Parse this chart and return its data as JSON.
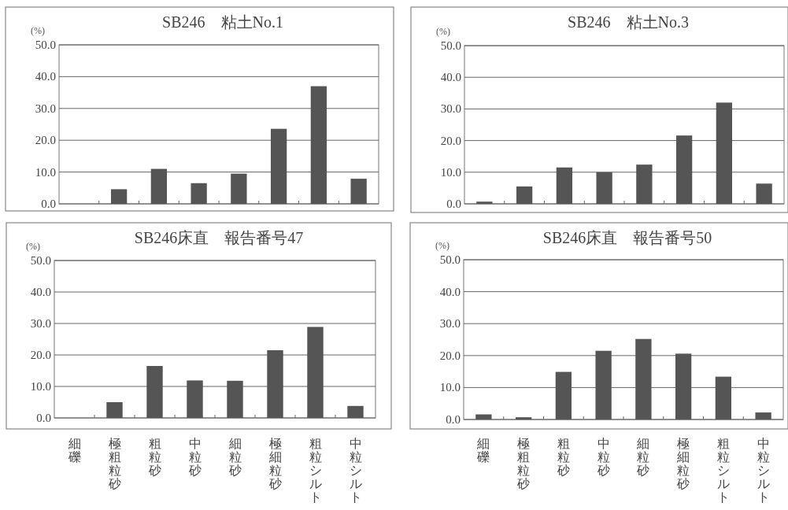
{
  "chart_data": [
    {
      "type": "bar",
      "title": "SB246　粘土No.1",
      "ylabel": "(%)",
      "categories": [
        null,
        null,
        null,
        null,
        null,
        null,
        null,
        null
      ],
      "values": [
        0,
        4.6,
        11.0,
        6.5,
        9.5,
        23.6,
        37.0,
        7.9
      ],
      "color": "#555555",
      "ylim": [
        0,
        50
      ],
      "yticks": [
        {
          "value": 0,
          "label": "0.0"
        },
        {
          "value": 10,
          "label": "10.0"
        },
        {
          "value": 20,
          "label": "20.0"
        },
        {
          "value": 30,
          "label": "30.0"
        },
        {
          "value": 40,
          "label": "40.0"
        },
        {
          "value": 50,
          "label": "50.0"
        }
      ],
      "grid": "y",
      "tick_labels": "y"
    },
    {
      "type": "bar",
      "title": "SB246　粘土No.3",
      "ylabel": "(%)",
      "categories": [
        null,
        null,
        null,
        null,
        null,
        null,
        null,
        null
      ],
      "values": [
        0.7,
        5.5,
        11.5,
        10.0,
        12.4,
        21.6,
        32.0,
        6.4
      ],
      "color": "#555555",
      "ylim": [
        0,
        50
      ],
      "yticks": [
        {
          "value": 0,
          "label": "0.0"
        },
        {
          "value": 10,
          "label": "10.0"
        },
        {
          "value": 20,
          "label": "20.0"
        },
        {
          "value": 30,
          "label": "30.0"
        },
        {
          "value": 40,
          "label": "40.0"
        },
        {
          "value": 50,
          "label": "50.0"
        }
      ],
      "grid": "y",
      "tick_labels": "y"
    },
    {
      "type": "bar",
      "title": "SB246床直　報告番号47",
      "ylabel": "(%)",
      "categories": [
        "細礫",
        "極粗粒砂",
        "粗粒砂",
        "中粒砂",
        "細粒砂",
        "極細粒砂",
        "粗粒シルト",
        "中粒シルト"
      ],
      "values": [
        0,
        5.0,
        16.5,
        11.9,
        11.8,
        21.5,
        28.9,
        3.8
      ],
      "color": "#555555",
      "ylim": [
        0,
        50
      ],
      "yticks": [
        {
          "value": 0,
          "label": "0.0"
        },
        {
          "value": 10,
          "label": "10.0"
        },
        {
          "value": 20,
          "label": "20.0"
        },
        {
          "value": 30,
          "label": "30.0"
        },
        {
          "value": 40,
          "label": "40.0"
        },
        {
          "value": 50,
          "label": "50.0"
        }
      ],
      "grid": "y"
    },
    {
      "type": "bar",
      "title": "SB246床直　報告番号50",
      "ylabel": "(%)",
      "categories": [
        "細礫",
        "極粗粒砂",
        "粗粒砂",
        "中粒砂",
        "細粒砂",
        "極細粒砂",
        "粗粒シルト",
        "中粒シルト"
      ],
      "values": [
        1.6,
        0.7,
        14.9,
        21.5,
        25.2,
        20.6,
        13.4,
        2.2
      ],
      "color": "#555555",
      "ylim": [
        0,
        50
      ],
      "yticks": [
        {
          "value": 0,
          "label": "0.0"
        },
        {
          "value": 10,
          "label": "10.0"
        },
        {
          "value": 20,
          "label": "20.0"
        },
        {
          "value": 30,
          "label": "30.0"
        },
        {
          "value": 40,
          "label": "40.0"
        },
        {
          "value": 50,
          "label": "50.0"
        }
      ],
      "grid": "y"
    }
  ]
}
